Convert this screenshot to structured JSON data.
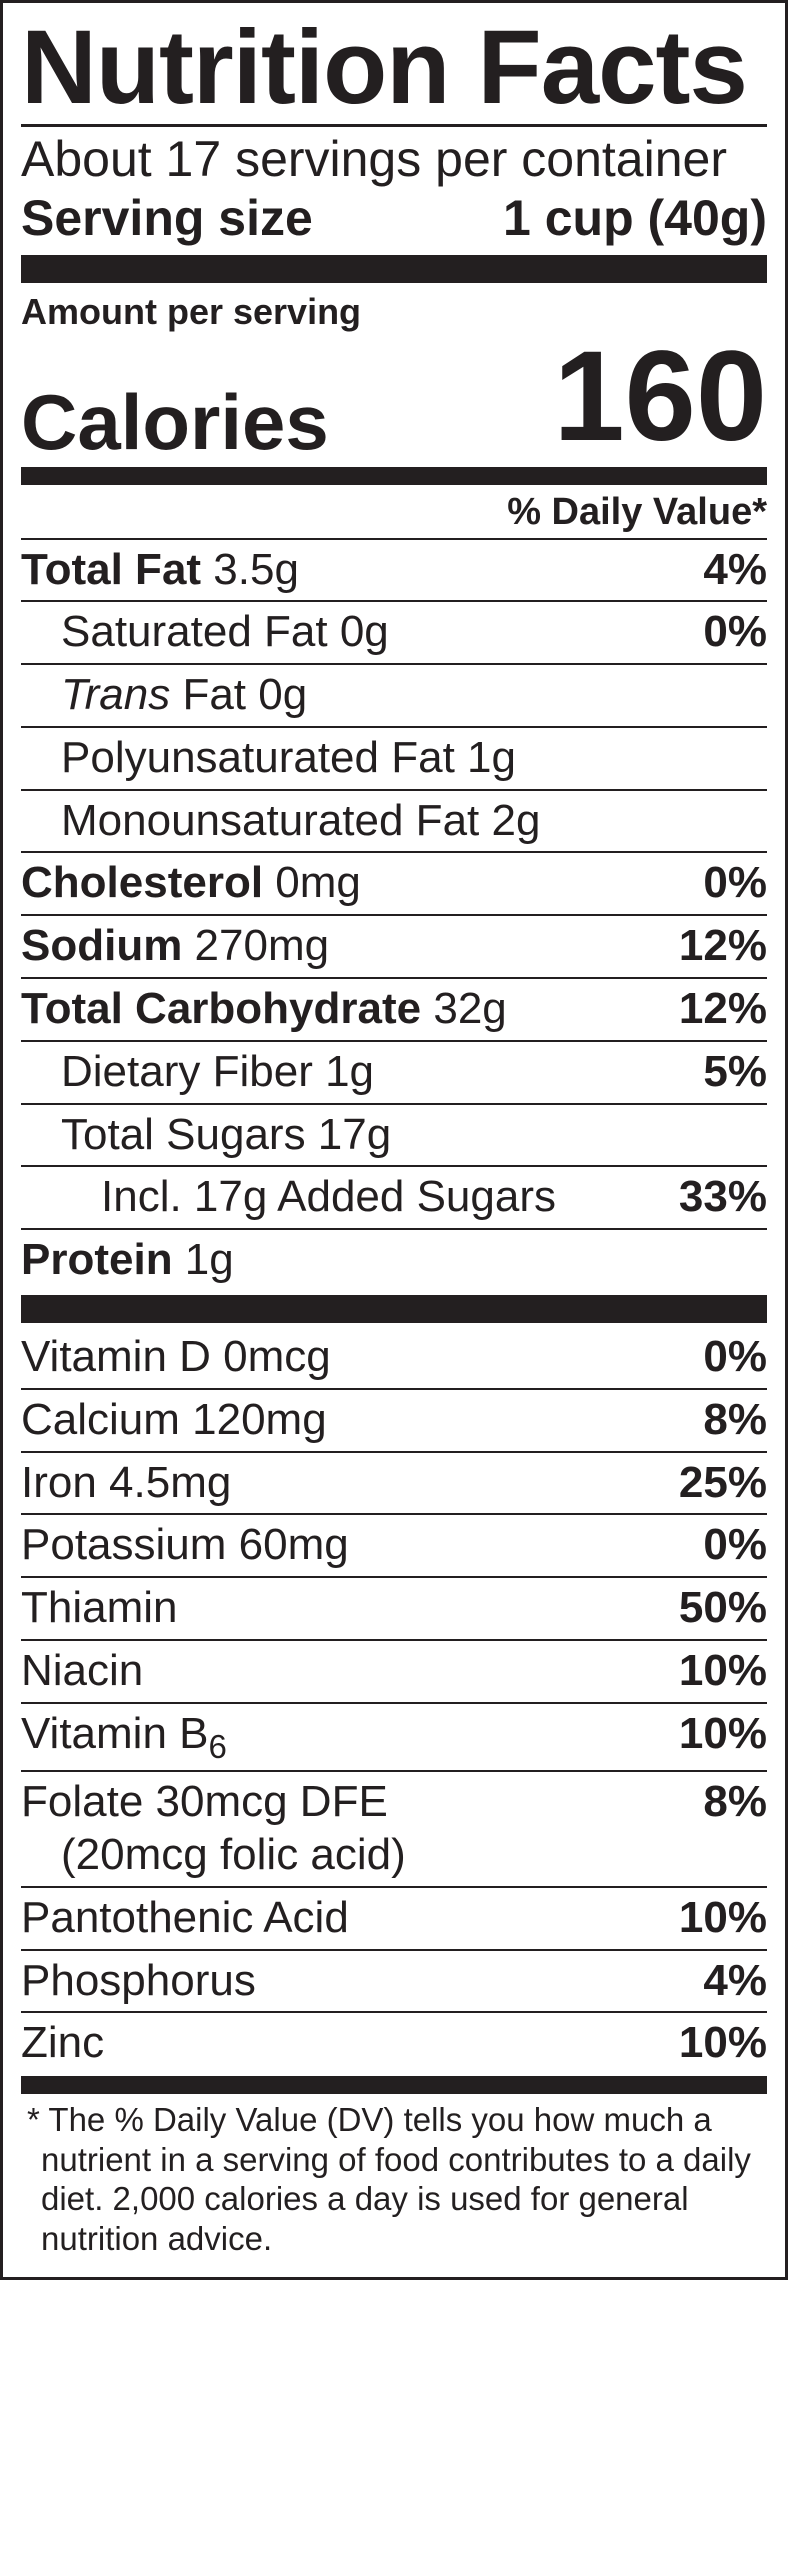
{
  "title": "Nutrition Facts",
  "servings_per_container": "About 17 servings per container",
  "serving_size_label": "Serving size",
  "serving_size_value": "1 cup (40g)",
  "amount_per_serving": "Amount per serving",
  "calories_label": "Calories",
  "calories_value": "160",
  "dv_header": "% Daily Value*",
  "nutrients_main": [
    {
      "label_bold": "Total Fat",
      "amount": " 3.5g",
      "dv": "4%",
      "indent": 0
    },
    {
      "label": "Saturated Fat 0g",
      "dv": "0%",
      "indent": 1
    },
    {
      "label_italic": "Trans",
      "label": " Fat 0g",
      "dv": "",
      "indent": 1
    },
    {
      "label": "Polyunsaturated Fat 1g",
      "dv": "",
      "indent": 1
    },
    {
      "label": "Monounsaturated Fat 2g",
      "dv": "",
      "indent": 1
    },
    {
      "label_bold": "Cholesterol",
      "amount": " 0mg",
      "dv": "0%",
      "indent": 0
    },
    {
      "label_bold": "Sodium",
      "amount": " 270mg",
      "dv": "12%",
      "indent": 0
    },
    {
      "label_bold": "Total Carbohydrate",
      "amount": " 32g",
      "dv": "12%",
      "indent": 0
    },
    {
      "label": "Dietary Fiber 1g",
      "dv": "5%",
      "indent": 1
    },
    {
      "label": "Total Sugars 17g",
      "dv": "",
      "indent": 1
    },
    {
      "label": "Incl. 17g Added Sugars",
      "dv": "33%",
      "indent": 2
    },
    {
      "label_bold": "Protein",
      "amount": " 1g",
      "dv": "",
      "indent": 0,
      "no_rule_after": true
    }
  ],
  "nutrients_vit": [
    {
      "label": "Vitamin D 0mcg",
      "dv": "0%"
    },
    {
      "label": "Calcium 120mg",
      "dv": "8%"
    },
    {
      "label": "Iron 4.5mg",
      "dv": "25%"
    },
    {
      "label": "Potassium 60mg",
      "dv": "0%"
    },
    {
      "label": "Thiamin",
      "dv": "50%"
    },
    {
      "label": "Niacin",
      "dv": "10%"
    },
    {
      "label_html": "Vitamin B<sub>6</sub>",
      "dv": "10%"
    },
    {
      "label": "Folate 30mcg DFE",
      "sub_label": "(20mcg folic acid)",
      "dv": "8%"
    },
    {
      "label": "Pantothenic Acid",
      "dv": "10%"
    },
    {
      "label": "Phosphorus",
      "dv": "4%"
    },
    {
      "label": "Zinc",
      "dv": "10%",
      "no_rule_after": true
    }
  ],
  "footnote": "* The % Daily Value (DV) tells you how much a nutrient in a serving of food contributes to a daily diet. 2,000 calories a day is used for general nutrition advice."
}
